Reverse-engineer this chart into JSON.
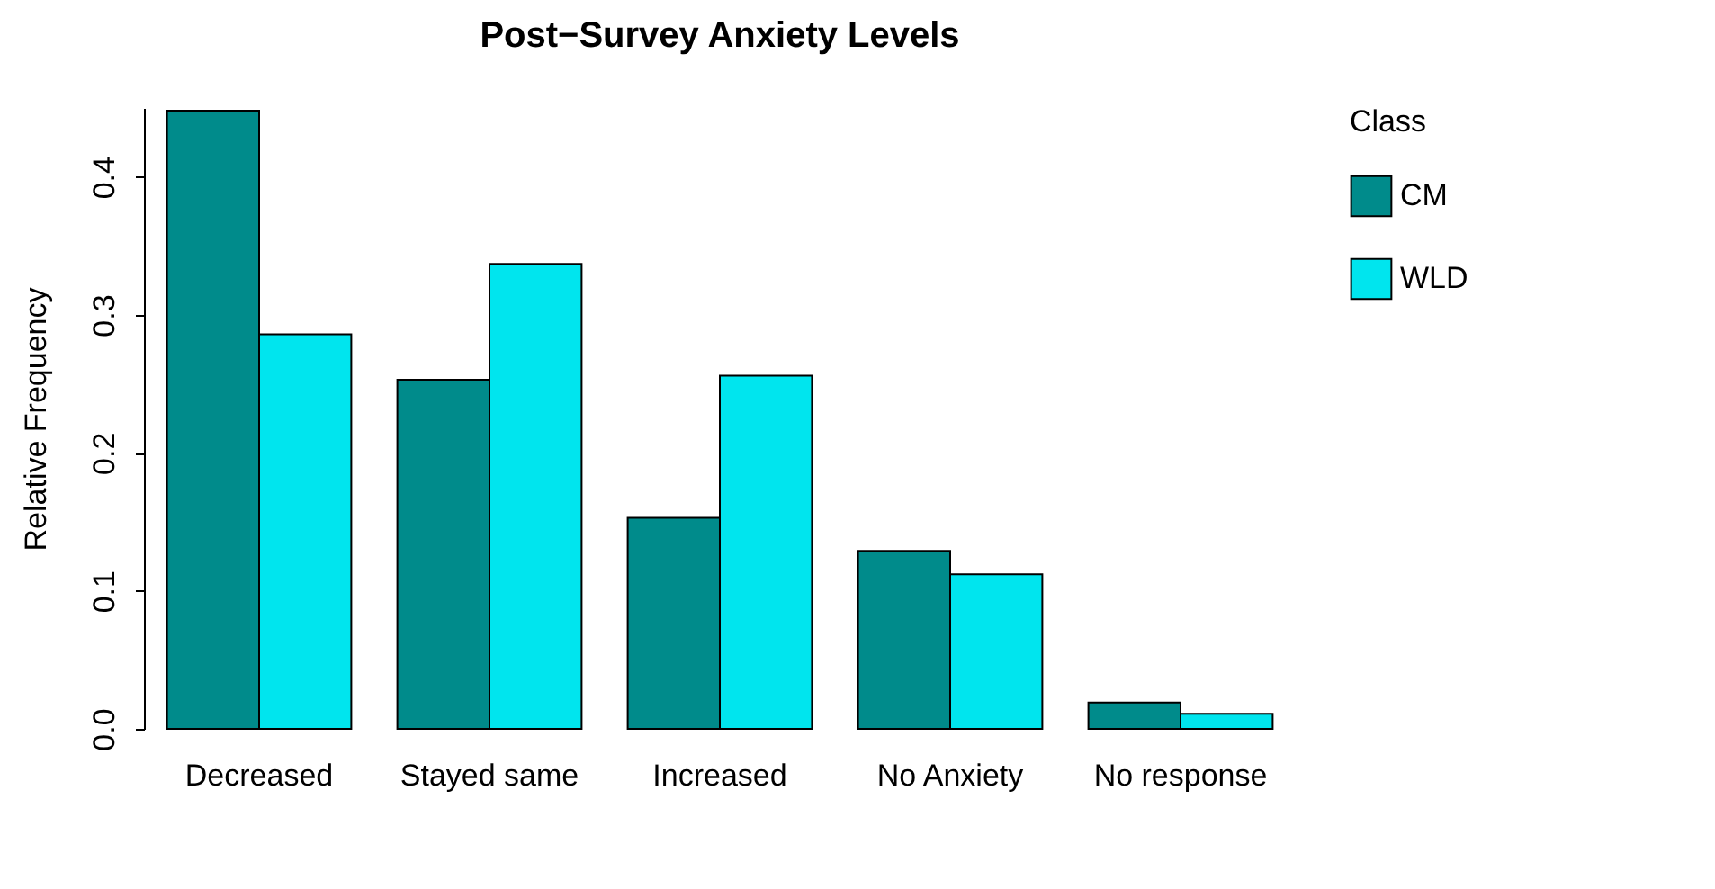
{
  "chart_data": {
    "type": "bar",
    "title": "Post−Survey Anxiety Levels",
    "ylabel": "Relative Frequency",
    "legend_title": "Class",
    "legend": "right",
    "categories": [
      "Decreased",
      "Stayed same",
      "Increased",
      "No Anxiety",
      "No response"
    ],
    "series": [
      {
        "name": "CM",
        "color": "#008b8b",
        "values": [
          0.448,
          0.253,
          0.153,
          0.129,
          0.019
        ]
      },
      {
        "name": "WLD",
        "color": "#00e5ee",
        "values": [
          0.286,
          0.337,
          0.256,
          0.112,
          0.011
        ]
      }
    ],
    "ylim": [
      0,
      0.45
    ],
    "yticks": [
      {
        "value": 0,
        "label": "0.0"
      },
      {
        "value": 0.1,
        "label": "0.1"
      },
      {
        "value": 0.2,
        "label": "0.2"
      },
      {
        "value": 0.3,
        "label": "0.3"
      },
      {
        "value": 0.4,
        "label": "0.4"
      }
    ],
    "grid": false
  }
}
